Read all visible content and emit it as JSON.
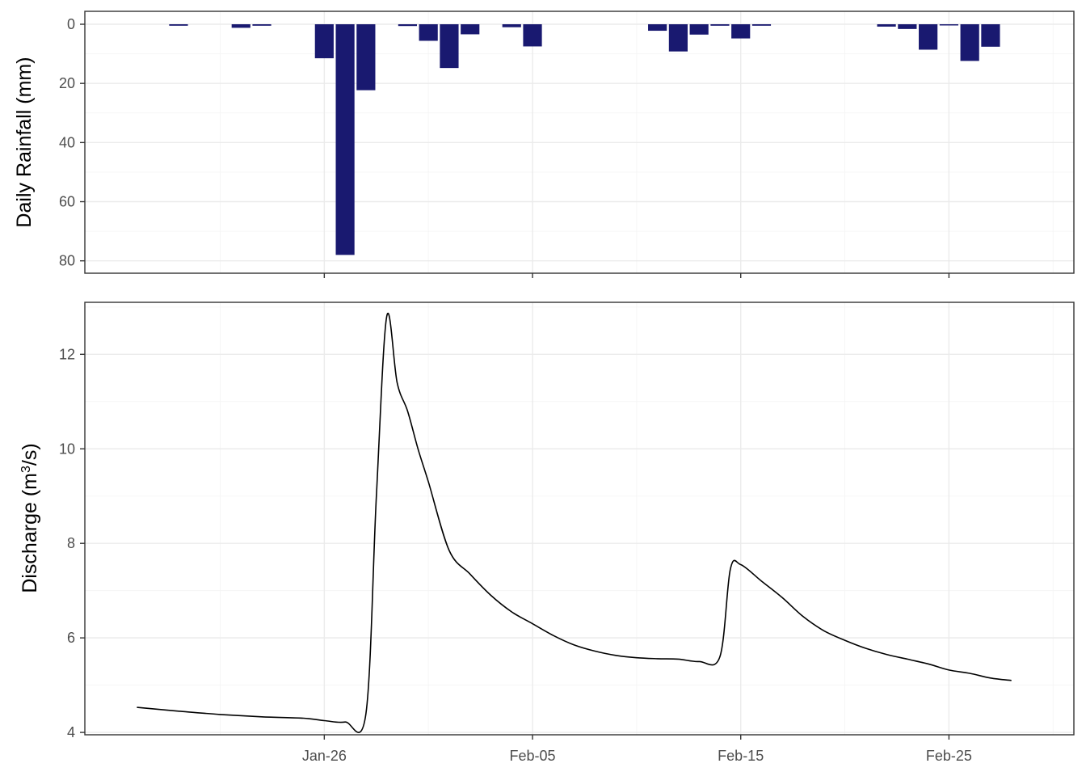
{
  "chart_data": [
    {
      "type": "bar",
      "ylabel": "Daily Rainfall (mm)",
      "y_reversed": true,
      "ylim": [
        0,
        82
      ],
      "yticks": [
        0,
        20,
        40,
        60,
        80
      ],
      "grid": true,
      "color": "#191970",
      "x": [
        "2023-01-19",
        "2023-01-22",
        "2023-01-23",
        "2023-01-26",
        "2023-01-27",
        "2023-01-28",
        "2023-01-30",
        "2023-01-31",
        "2023-02-01",
        "2023-02-02",
        "2023-02-04",
        "2023-02-05",
        "2023-02-11",
        "2023-02-12",
        "2023-02-13",
        "2023-02-14",
        "2023-02-15",
        "2023-02-16",
        "2023-02-22",
        "2023-02-23",
        "2023-02-24",
        "2023-02-25",
        "2023-02-26",
        "2023-02-27"
      ],
      "values": [
        0.5,
        1.2,
        0.5,
        11.5,
        78.0,
        22.3,
        0.6,
        5.6,
        14.8,
        3.4,
        1.0,
        7.5,
        2.2,
        9.2,
        3.5,
        0.5,
        4.8,
        0.5,
        0.8,
        1.6,
        8.6,
        0.4,
        12.4,
        7.6
      ]
    },
    {
      "type": "line",
      "ylabel": "Discharge (m³/s)",
      "ylabel_base": "Discharge (m",
      "ylabel_sup": "3",
      "ylabel_end": "/s)",
      "ylim": [
        3.95,
        13.1
      ],
      "yticks": [
        4,
        6,
        8,
        10,
        12
      ],
      "grid": true,
      "color": "#000000",
      "x": [
        "2023-01-17",
        "2023-01-19",
        "2023-01-21",
        "2023-01-23",
        "2023-01-25",
        "2023-01-26",
        "2023-01-27",
        "2023-01-28",
        "2023-01-28T12",
        "2023-01-29",
        "2023-01-29T12",
        "2023-01-30",
        "2023-01-30T12",
        "2023-01-31",
        "2023-02-01",
        "2023-02-02",
        "2023-02-03",
        "2023-02-04",
        "2023-02-05",
        "2023-02-06",
        "2023-02-07",
        "2023-02-08",
        "2023-02-09",
        "2023-02-10",
        "2023-02-11",
        "2023-02-12",
        "2023-02-13",
        "2023-02-14",
        "2023-02-14T12",
        "2023-02-15",
        "2023-02-16",
        "2023-02-17",
        "2023-02-18",
        "2023-02-19",
        "2023-02-20",
        "2023-02-21",
        "2023-02-22",
        "2023-02-23",
        "2023-02-24",
        "2023-02-25",
        "2023-02-26",
        "2023-02-27",
        "2023-02-28"
      ],
      "values": [
        4.53,
        4.45,
        4.38,
        4.33,
        4.3,
        4.25,
        4.22,
        4.4,
        9.0,
        12.8,
        11.4,
        10.8,
        10.0,
        9.3,
        7.85,
        7.35,
        6.9,
        6.55,
        6.3,
        6.05,
        5.85,
        5.72,
        5.63,
        5.58,
        5.56,
        5.55,
        5.5,
        5.6,
        7.45,
        7.55,
        7.2,
        6.85,
        6.45,
        6.15,
        5.95,
        5.78,
        5.65,
        5.55,
        5.45,
        5.32,
        5.25,
        5.15,
        5.1
      ]
    }
  ],
  "xaxis": {
    "tick_dates": [
      "2023-01-26",
      "2023-02-05",
      "2023-02-15",
      "2023-02-25"
    ],
    "tick_labels": [
      "Jan-26",
      "Feb-05",
      "Feb-15",
      "Feb-25"
    ],
    "range": [
      "2023-01-14T12",
      "2023-03-03"
    ]
  }
}
